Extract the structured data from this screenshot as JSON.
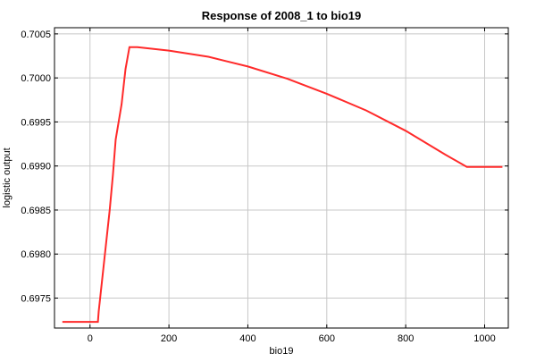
{
  "chart_data": {
    "type": "line",
    "title": "Response of 2008_1 to bio19",
    "xlabel": "bio19",
    "ylabel": "logistic output",
    "xlim": [
      -90,
      1060
    ],
    "ylim": [
      0.69716,
      0.70057
    ],
    "xticks": [
      0,
      200,
      400,
      600,
      800,
      1000
    ],
    "yticks": [
      0.6975,
      0.698,
      0.6985,
      0.699,
      0.6995,
      0.7,
      0.7005
    ],
    "ytick_labels": [
      "0.6975",
      "0.6980",
      "0.6985",
      "0.6990",
      "0.6995",
      "0.7000",
      "0.7005"
    ],
    "grid": true,
    "colors": {
      "line": "#ff2a2a",
      "grid": "#c8c8c8",
      "frame": "#000000"
    },
    "series": [
      {
        "x": [
          -70,
          20,
          22,
          50,
          58,
          65,
          80,
          90,
          100,
          120,
          200,
          300,
          400,
          500,
          600,
          700,
          800,
          900,
          955,
          1045
        ],
        "y": [
          0.69723,
          0.69723,
          0.69735,
          0.6985,
          0.6989,
          0.6993,
          0.6997,
          0.7001,
          0.70035,
          0.70035,
          0.70031,
          0.70024,
          0.70013,
          0.69999,
          0.69982,
          0.69963,
          0.6994,
          0.69913,
          0.69899,
          0.69899
        ]
      }
    ]
  }
}
